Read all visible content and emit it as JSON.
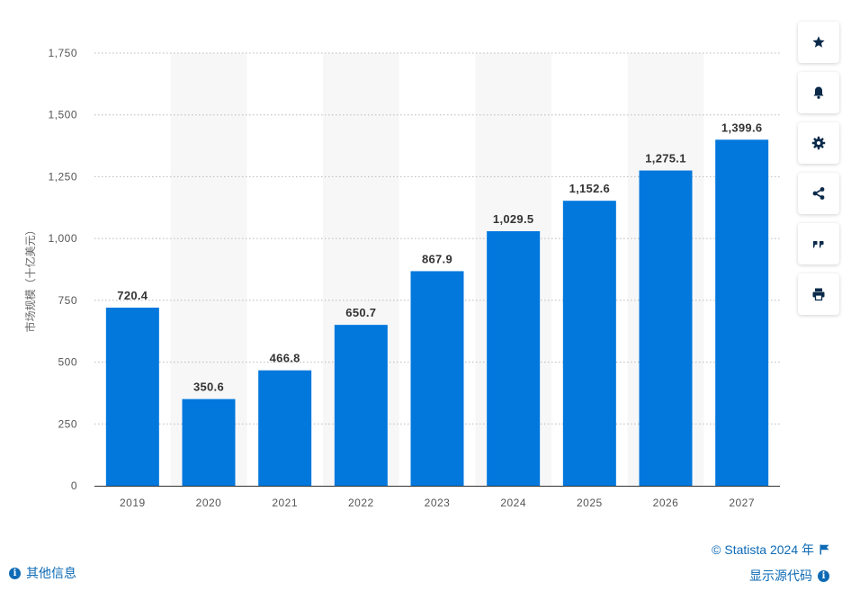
{
  "chart_data": {
    "type": "bar",
    "categories": [
      "2019",
      "2020",
      "2021",
      "2022",
      "2023",
      "2024",
      "2025",
      "2026",
      "2027"
    ],
    "values": [
      720.4,
      350.6,
      466.8,
      650.7,
      867.9,
      1029.5,
      1152.6,
      1275.1,
      1399.6
    ],
    "value_labels": [
      "720.4",
      "350.6",
      "466.8",
      "650.7",
      "867.9",
      "1,029.5",
      "1,152.6",
      "1,275.1",
      "1,399.6"
    ],
    "title": "",
    "xlabel": "",
    "ylabel": "市场规模（十亿美元）",
    "ylim": [
      0,
      1750
    ],
    "yticks": [
      0,
      250,
      500,
      750,
      1000,
      1250,
      1500,
      1750
    ],
    "ytick_labels": [
      "0",
      "250",
      "500",
      "750",
      "1,000",
      "1,250",
      "1,500",
      "1,750"
    ],
    "grid": true,
    "bar_color": "#0278dd",
    "alt_band_color": "#f7f7f8"
  },
  "toolbar": {
    "buttons": [
      {
        "name": "star-icon"
      },
      {
        "name": "bell-icon"
      },
      {
        "name": "gear-icon"
      },
      {
        "name": "share-icon"
      },
      {
        "name": "quote-icon"
      },
      {
        "name": "print-icon"
      }
    ]
  },
  "footer": {
    "more_info": "其他信息",
    "copyright": "© Statista 2024 年",
    "show_source": "显示源代码"
  },
  "colors": {
    "link": "#0d6ab5",
    "bar": "#0278dd"
  }
}
